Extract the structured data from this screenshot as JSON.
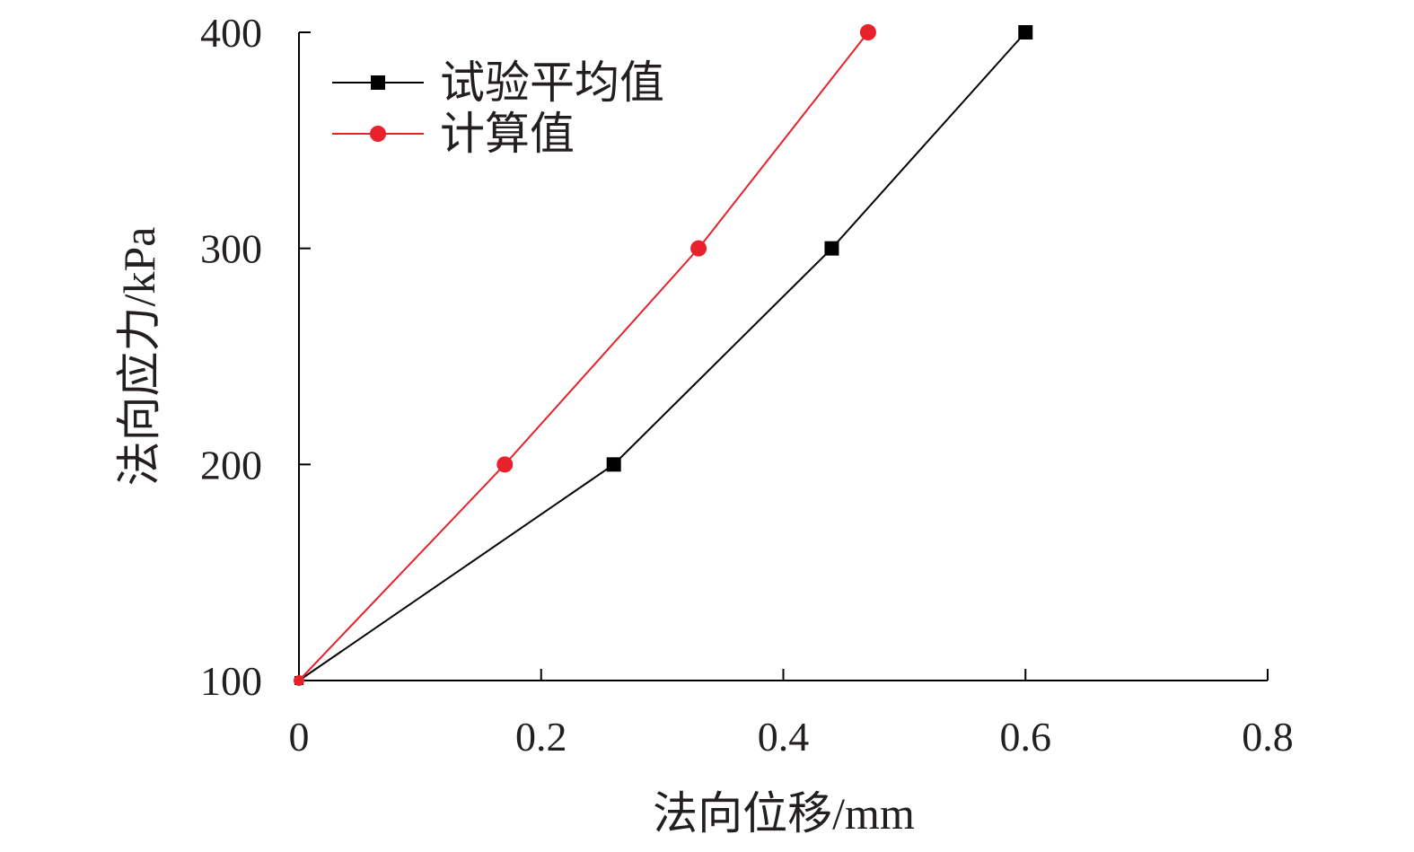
{
  "chart_data": {
    "type": "line",
    "xlabel": "法向位移/mm",
    "ylabel": "法向应力/kPa",
    "xlim": [
      0,
      0.8
    ],
    "ylim": [
      100,
      400
    ],
    "xticks": [
      0,
      0.2,
      0.4,
      0.6,
      0.8
    ],
    "yticks": [
      100,
      200,
      300,
      400
    ],
    "xtick_labels": [
      "0",
      "0.2",
      "0.4",
      "0.6",
      "0.8"
    ],
    "ytick_labels": [
      "100",
      "200",
      "300",
      "400"
    ],
    "grid": false,
    "legend_position": "top-left",
    "series": [
      {
        "name": "试验平均值",
        "marker": "square",
        "color": "#000000",
        "x": [
          0,
          0.26,
          0.44,
          0.6
        ],
        "y": [
          100,
          200,
          300,
          400
        ]
      },
      {
        "name": "计算值",
        "marker": "circle",
        "color": "#e8212a",
        "x": [
          0,
          0.17,
          0.33,
          0.47
        ],
        "y": [
          100,
          200,
          300,
          400
        ]
      }
    ]
  }
}
